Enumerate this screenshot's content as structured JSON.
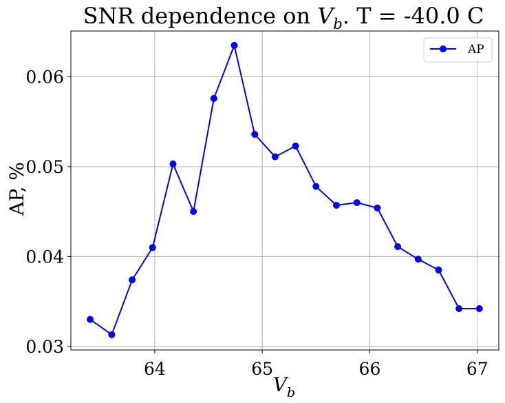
{
  "chart_data": {
    "type": "line",
    "title": "SNR dependence on V_b. T = -40.0 C",
    "title_parts": {
      "prefix": "SNR dependence on ",
      "var": "V",
      "sub": "b",
      "suffix": ". T = -40.0 C"
    },
    "xlabel": "V_b",
    "xlabel_parts": {
      "var": "V",
      "sub": "b"
    },
    "ylabel": "AP, %",
    "xlim": [
      63.22,
      67.2
    ],
    "ylim": [
      0.0296,
      0.0651
    ],
    "xticks": [
      64,
      65,
      66,
      67
    ],
    "yticks": [
      0.03,
      0.04,
      0.05,
      0.06
    ],
    "xtick_labels": [
      "64",
      "65",
      "66",
      "67"
    ],
    "ytick_labels": [
      "0.03",
      "0.04",
      "0.05",
      "0.06"
    ],
    "grid": true,
    "legend_position": "top-right",
    "series": [
      {
        "name": "AP",
        "color": "#0000ff",
        "marker": "circle",
        "x": [
          63.4,
          63.6,
          63.79,
          63.98,
          64.17,
          64.36,
          64.55,
          64.74,
          64.93,
          65.12,
          65.31,
          65.5,
          65.69,
          65.88,
          66.07,
          66.26,
          66.45,
          66.64,
          66.83,
          67.02
        ],
        "y": [
          0.033,
          0.0313,
          0.0374,
          0.041,
          0.0503,
          0.045,
          0.0576,
          0.0635,
          0.0536,
          0.0511,
          0.0523,
          0.0478,
          0.0457,
          0.046,
          0.0454,
          0.0411,
          0.0397,
          0.0385,
          0.0342,
          0.0342
        ]
      }
    ]
  }
}
